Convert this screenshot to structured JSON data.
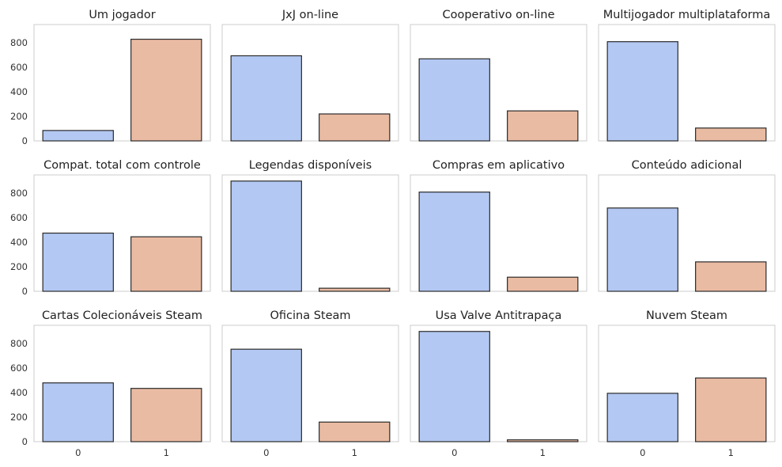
{
  "chart_data": {
    "type": "bar",
    "layout": "grid 3 rows x 4 columns, shared axes",
    "categories": [
      "0",
      "1"
    ],
    "ylim": [
      0,
      950
    ],
    "yticks": [
      0,
      200,
      400,
      600,
      800
    ],
    "grid": false,
    "colors": {
      "bar_0": "#b3c8f2",
      "bar_1": "#eabba3",
      "edge": "#2b2b2b",
      "frame": "#cccccc"
    },
    "panels": [
      {
        "title": "Um jogador",
        "values": [
          85,
          830
        ]
      },
      {
        "title": "JxJ on-line",
        "values": [
          695,
          220
        ]
      },
      {
        "title": "Cooperativo on-line",
        "values": [
          670,
          245
        ]
      },
      {
        "title": "Multijogador multiplataforma",
        "values": [
          810,
          105
        ]
      },
      {
        "title": "Compat. total com controle",
        "values": [
          475,
          445
        ]
      },
      {
        "title": "Legendas disponíveis",
        "values": [
          900,
          25
        ]
      },
      {
        "title": "Compras em aplicativo",
        "values": [
          810,
          115
        ]
      },
      {
        "title": "Conteúdo adicional",
        "values": [
          680,
          240
        ]
      },
      {
        "title": "Cartas Colecionáveis Steam",
        "values": [
          480,
          435
        ]
      },
      {
        "title": "Oficina Steam",
        "values": [
          755,
          160
        ]
      },
      {
        "title": "Usa Valve Antitrapaça",
        "values": [
          900,
          15
        ]
      },
      {
        "title": "Nuvem Steam",
        "values": [
          395,
          520
        ]
      }
    ]
  }
}
